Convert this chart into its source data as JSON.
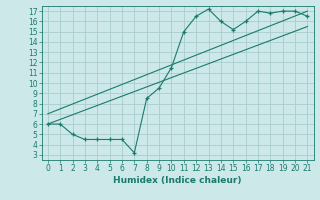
{
  "xlabel": "Humidex (Indice chaleur)",
  "bg_color": "#cce8e8",
  "grid_color": "#aacccc",
  "line_color": "#1a7a6e",
  "xlim": [
    -0.5,
    21.5
  ],
  "ylim": [
    2.5,
    17.5
  ],
  "xticks": [
    0,
    1,
    2,
    3,
    4,
    5,
    6,
    7,
    8,
    9,
    10,
    11,
    12,
    13,
    14,
    15,
    16,
    17,
    18,
    19,
    20,
    21
  ],
  "yticks": [
    3,
    4,
    5,
    6,
    7,
    8,
    9,
    10,
    11,
    12,
    13,
    14,
    15,
    16,
    17
  ],
  "line1_x": [
    0,
    1,
    2,
    3,
    4,
    5,
    6,
    7,
    8,
    9,
    10,
    11,
    12,
    13,
    14,
    15,
    16,
    17,
    18,
    19,
    20,
    21
  ],
  "line1_y": [
    6.0,
    6.0,
    5.0,
    4.5,
    4.5,
    4.5,
    4.5,
    3.2,
    8.5,
    9.5,
    11.5,
    15.0,
    16.5,
    17.2,
    16.0,
    15.2,
    16.0,
    17.0,
    16.8,
    17.0,
    17.0,
    16.5
  ],
  "line2_x": [
    0,
    21
  ],
  "line2_y": [
    6.0,
    15.5
  ],
  "line3_x": [
    0,
    21
  ],
  "line3_y": [
    7.0,
    17.0
  ],
  "xlabel_fontsize": 6.5,
  "tick_fontsize": 5.5
}
